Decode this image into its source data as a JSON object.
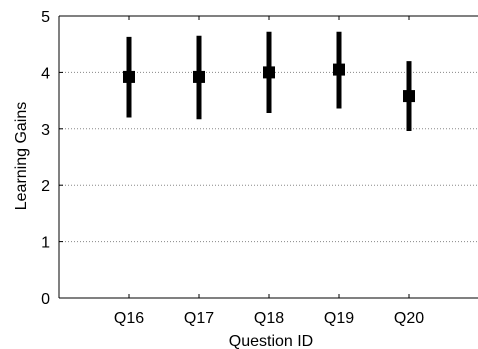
{
  "chart_data": {
    "type": "scatter",
    "xlabel": "Question ID",
    "ylabel": "Learning Gains",
    "categories": [
      "Q16",
      "Q17",
      "Q18",
      "Q19",
      "Q20"
    ],
    "x_range": [
      0,
      6
    ],
    "ylim": [
      0,
      5
    ],
    "yticks": [
      0,
      1,
      2,
      3,
      4,
      5
    ],
    "grid": "horizontal-dotted",
    "series": [
      {
        "values": [
          3.92,
          3.92,
          4.0,
          4.05,
          3.58
        ],
        "error_low": [
          3.2,
          3.17,
          3.28,
          3.36,
          2.96
        ],
        "error_high": [
          4.63,
          4.65,
          4.72,
          4.72,
          4.2
        ]
      }
    ],
    "colors": {
      "marker": "#000000",
      "grid": "#888888",
      "axis": "#000000"
    }
  }
}
